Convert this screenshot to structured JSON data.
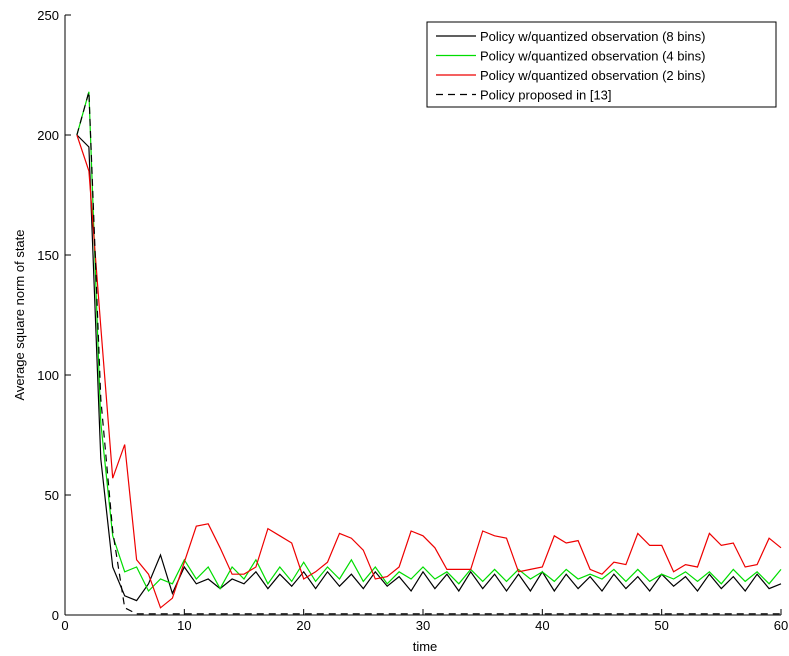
{
  "chart_data": {
    "type": "line",
    "title": "",
    "xlabel": "time",
    "ylabel": "Average square norm of state",
    "xlim": [
      0,
      60
    ],
    "ylim": [
      0,
      250
    ],
    "xticks": [
      0,
      10,
      20,
      30,
      40,
      50,
      60
    ],
    "yticks": [
      0,
      50,
      100,
      150,
      200,
      250
    ],
    "grid": false,
    "legend_position": "top-right",
    "x": [
      1,
      2,
      3,
      4,
      5,
      6,
      7,
      8,
      9,
      10,
      11,
      12,
      13,
      14,
      15,
      16,
      17,
      18,
      19,
      20,
      21,
      22,
      23,
      24,
      25,
      26,
      27,
      28,
      29,
      30,
      31,
      32,
      33,
      34,
      35,
      36,
      37,
      38,
      39,
      40,
      41,
      42,
      43,
      44,
      45,
      46,
      47,
      48,
      49,
      50,
      51,
      52,
      53,
      54,
      55,
      56,
      57,
      58,
      59,
      60
    ],
    "series": [
      {
        "name": "Policy w/quantized observation (8 bins)",
        "color": "#000000",
        "dash": "solid",
        "values": [
          200,
          195,
          65,
          20,
          8,
          6,
          13,
          25,
          9,
          20,
          13,
          15,
          11,
          15,
          13,
          18,
          11,
          17,
          12,
          18,
          11,
          18,
          12,
          17,
          11,
          18,
          12,
          16,
          10,
          18,
          11,
          17,
          10,
          18,
          11,
          17,
          10,
          17,
          10,
          18,
          10,
          17,
          11,
          16,
          10,
          17,
          11,
          16,
          10,
          17,
          12,
          16,
          10,
          17,
          11,
          16,
          10,
          17,
          11,
          13
        ]
      },
      {
        "name": "Policy w/quantized observation (4 bins)",
        "color": "#00dd00",
        "dash": "solid",
        "values": [
          200,
          218,
          80,
          33,
          18,
          20,
          10,
          15,
          13,
          23,
          15,
          20,
          11,
          20,
          15,
          23,
          13,
          20,
          14,
          22,
          14,
          20,
          15,
          23,
          14,
          20,
          13,
          18,
          15,
          20,
          15,
          18,
          13,
          19,
          14,
          19,
          14,
          19,
          15,
          18,
          14,
          19,
          15,
          17,
          15,
          19,
          14,
          19,
          14,
          17,
          15,
          18,
          14,
          18,
          13,
          19,
          14,
          18,
          13,
          19
        ]
      },
      {
        "name": "Policy w/quantized observation (2 bins)",
        "color": "#ee0000",
        "dash": "solid",
        "values": [
          200,
          185,
          120,
          57,
          71,
          23,
          17,
          3,
          7,
          22,
          37,
          38,
          28,
          17,
          17,
          20,
          36,
          33,
          30,
          15,
          18,
          22,
          34,
          32,
          27,
          15,
          16,
          20,
          35,
          33,
          28,
          19,
          19,
          19,
          35,
          33,
          32,
          18,
          19,
          20,
          33,
          30,
          31,
          19,
          17,
          22,
          21,
          34,
          29,
          29,
          18,
          21,
          20,
          34,
          29,
          30,
          20,
          21,
          32,
          28
        ]
      },
      {
        "name": "Policy proposed in [13]",
        "color": "#000000",
        "dash": "dashed",
        "values": [
          200,
          218,
          90,
          35,
          3,
          0.5,
          0.5,
          0.5,
          0.5,
          0.5,
          0.5,
          0.5,
          0.5,
          0.5,
          0.5,
          0.5,
          0.5,
          0.5,
          0.5,
          0.5,
          0.5,
          0.5,
          0.5,
          0.5,
          0.5,
          0.5,
          0.5,
          0.5,
          0.5,
          0.5,
          0.5,
          0.5,
          0.5,
          0.5,
          0.5,
          0.5,
          0.5,
          0.5,
          0.5,
          0.5,
          0.5,
          0.5,
          0.5,
          0.5,
          0.5,
          0.5,
          0.5,
          0.5,
          0.5,
          0.5,
          0.5,
          0.5,
          0.5,
          0.5,
          0.5,
          0.5,
          0.5,
          0.5,
          0.5,
          0.5
        ]
      }
    ]
  }
}
